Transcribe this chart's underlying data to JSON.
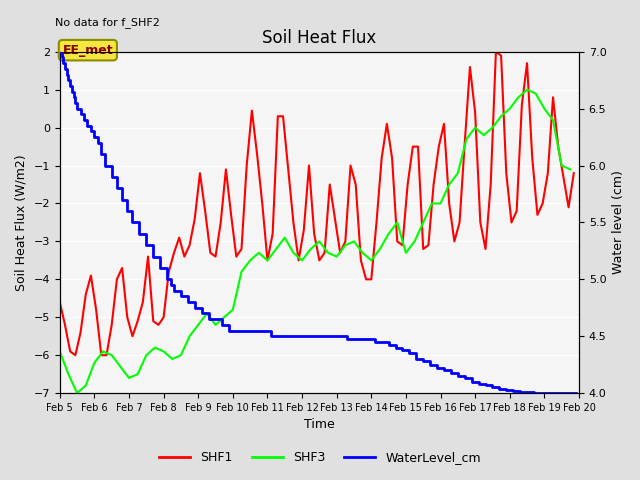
{
  "title": "Soil Heat Flux",
  "title_note": "No data for f_SHF2",
  "ylabel_left": "Soil Heat Flux (W/m2)",
  "ylabel_right": "Water level (cm)",
  "xlabel": "Time",
  "ylim_left": [
    -7.0,
    2.0
  ],
  "ylim_right": [
    4.0,
    7.0
  ],
  "xtick_labels": [
    "Feb 5",
    "Feb 6",
    "Feb 7",
    "Feb 8",
    "Feb 9",
    "Feb 10",
    "Feb 11",
    "Feb 12",
    "Feb 13",
    "Feb 14",
    "Feb 15",
    "Feb 16",
    "Feb 17",
    "Feb 18",
    "Feb 19",
    "Feb 20"
  ],
  "annotation_text": "EE_met",
  "background_color": "#e0e0e0",
  "plot_bg_color": "#f5f5f5",
  "shf1_color": "red",
  "shf3_color": "lime",
  "water_color": "blue",
  "grid_color": "#ffffff",
  "tick_fontsize": 8,
  "label_fontsize": 9,
  "title_fontsize": 12,
  "line_width": 1.5,
  "shf1_x": [
    5.0,
    5.15,
    5.3,
    5.45,
    5.6,
    5.75,
    5.9,
    6.05,
    6.2,
    6.35,
    6.5,
    6.65,
    6.8,
    6.95,
    7.1,
    7.25,
    7.4,
    7.55,
    7.7,
    7.85,
    8.0,
    8.15,
    8.3,
    8.45,
    8.6,
    8.75,
    8.9,
    9.05,
    9.2,
    9.35,
    9.5,
    9.65,
    9.8,
    9.95,
    10.1,
    10.25,
    10.4,
    10.55,
    10.7,
    10.85,
    11.0,
    11.15,
    11.3,
    11.45,
    11.6,
    11.75,
    11.9,
    12.05,
    12.2,
    12.35,
    12.5,
    12.65,
    12.8,
    12.95,
    13.1,
    13.25,
    13.4,
    13.55,
    13.7,
    13.85,
    14.0,
    14.15,
    14.3,
    14.45,
    14.6,
    14.75,
    14.9,
    15.05,
    15.2,
    15.35,
    15.5,
    15.65,
    15.8,
    15.95,
    16.1,
    16.25,
    16.4,
    16.55,
    16.7,
    16.85,
    17.0,
    17.15,
    17.3,
    17.45,
    17.6,
    17.75,
    17.9,
    18.05,
    18.2,
    18.35,
    18.5,
    18.65,
    18.8,
    18.95,
    19.1,
    19.25,
    19.4,
    19.55,
    19.7,
    19.85
  ],
  "shf1_y": [
    -4.6,
    -5.2,
    -5.9,
    -6.0,
    -5.4,
    -4.4,
    -3.9,
    -4.8,
    -6.0,
    -6.0,
    -5.2,
    -4.0,
    -3.7,
    -5.0,
    -5.5,
    -5.1,
    -4.6,
    -3.4,
    -5.1,
    -5.2,
    -5.0,
    -3.8,
    -3.3,
    -2.9,
    -3.4,
    -3.1,
    -2.4,
    -1.2,
    -2.2,
    -3.3,
    -3.4,
    -2.5,
    -1.1,
    -2.3,
    -3.4,
    -3.2,
    -1.0,
    0.45,
    -0.7,
    -2.0,
    -3.5,
    -2.8,
    0.3,
    0.3,
    -1.1,
    -2.5,
    -3.5,
    -2.7,
    -1.0,
    -2.8,
    -3.5,
    -3.3,
    -1.5,
    -2.4,
    -3.3,
    -3.0,
    -1.0,
    -1.5,
    -3.5,
    -4.0,
    -4.0,
    -2.5,
    -0.8,
    0.1,
    -0.8,
    -3.0,
    -3.1,
    -1.5,
    -0.5,
    -0.5,
    -3.2,
    -3.1,
    -1.5,
    -0.5,
    0.1,
    -2.0,
    -3.0,
    -2.5,
    -0.4,
    1.6,
    0.4,
    -2.5,
    -3.2,
    -1.5,
    2.0,
    1.9,
    -1.2,
    -2.5,
    -2.2,
    0.6,
    1.7,
    -0.8,
    -2.3,
    -2.0,
    -1.2,
    0.8,
    -0.5,
    -1.3,
    -2.1,
    -1.2
  ],
  "shf3_x": [
    5.0,
    5.25,
    5.5,
    5.75,
    6.0,
    6.25,
    6.5,
    6.75,
    7.0,
    7.25,
    7.5,
    7.75,
    8.0,
    8.25,
    8.5,
    8.75,
    9.0,
    9.25,
    9.5,
    9.75,
    10.0,
    10.25,
    10.5,
    10.75,
    11.0,
    11.25,
    11.5,
    11.75,
    12.0,
    12.25,
    12.5,
    12.75,
    13.0,
    13.25,
    13.5,
    13.75,
    14.0,
    14.25,
    14.5,
    14.75,
    15.0,
    15.25,
    15.5,
    15.75,
    16.0,
    16.25,
    16.5,
    16.75,
    17.0,
    17.25,
    17.5,
    17.75,
    18.0,
    18.25,
    18.5,
    18.75,
    19.0,
    19.25,
    19.5,
    19.75
  ],
  "shf3_y": [
    -5.9,
    -6.5,
    -7.0,
    -6.8,
    -6.2,
    -5.9,
    -6.0,
    -6.3,
    -6.6,
    -6.5,
    -6.0,
    -5.8,
    -5.9,
    -6.1,
    -6.0,
    -5.5,
    -5.2,
    -4.9,
    -5.2,
    -5.0,
    -4.8,
    -3.8,
    -3.5,
    -3.3,
    -3.5,
    -3.2,
    -2.9,
    -3.3,
    -3.5,
    -3.2,
    -3.0,
    -3.3,
    -3.4,
    -3.1,
    -3.0,
    -3.3,
    -3.5,
    -3.2,
    -2.8,
    -2.5,
    -3.3,
    -3.0,
    -2.5,
    -2.0,
    -2.0,
    -1.5,
    -1.2,
    -0.3,
    0.0,
    -0.2,
    0.0,
    0.3,
    0.5,
    0.8,
    1.0,
    0.9,
    0.5,
    0.2,
    -1.0,
    -1.1
  ],
  "water_steps_x": [
    5.0,
    5.05,
    5.1,
    5.15,
    5.2,
    5.25,
    5.3,
    5.35,
    5.4,
    5.45,
    5.5,
    5.6,
    5.7,
    5.8,
    5.9,
    6.0,
    6.1,
    6.2,
    6.3,
    6.5,
    6.65,
    6.8,
    6.95,
    7.1,
    7.3,
    7.5,
    7.7,
    7.9,
    8.1,
    8.2,
    8.3,
    8.5,
    8.7,
    8.9,
    9.1,
    9.3,
    9.5,
    9.7,
    9.9,
    10.1,
    10.3,
    10.5,
    10.7,
    10.9,
    11.1,
    11.3,
    11.5,
    11.7,
    11.9,
    12.1,
    12.3,
    12.5,
    12.7,
    12.9,
    13.1,
    13.3,
    13.5,
    13.7,
    13.9,
    14.1,
    14.3,
    14.5,
    14.7,
    14.9,
    15.1,
    15.3,
    15.5,
    15.7,
    15.9,
    16.1,
    16.3,
    16.5,
    16.7,
    16.9,
    17.1,
    17.3,
    17.5,
    17.7,
    17.9,
    18.0,
    18.1,
    18.2,
    18.3,
    18.4,
    18.5,
    18.6,
    18.7,
    18.8,
    18.9,
    19.0,
    19.1,
    19.2,
    19.5,
    19.9
  ],
  "water_steps_y": [
    7.0,
    6.95,
    6.9,
    6.85,
    6.8,
    6.75,
    6.7,
    6.65,
    6.6,
    6.55,
    6.5,
    6.45,
    6.4,
    6.35,
    6.3,
    6.25,
    6.2,
    6.1,
    6.0,
    5.9,
    5.8,
    5.7,
    5.6,
    5.5,
    5.4,
    5.3,
    5.2,
    5.1,
    5.0,
    4.95,
    4.9,
    4.85,
    4.8,
    4.75,
    4.7,
    4.65,
    4.65,
    4.6,
    4.55,
    4.55,
    4.55,
    4.55,
    4.55,
    4.55,
    4.5,
    4.5,
    4.5,
    4.5,
    4.5,
    4.5,
    4.5,
    4.5,
    4.5,
    4.5,
    4.5,
    4.48,
    4.48,
    4.48,
    4.48,
    4.45,
    4.45,
    4.42,
    4.4,
    4.38,
    4.35,
    4.3,
    4.28,
    4.25,
    4.22,
    4.2,
    4.18,
    4.15,
    4.13,
    4.1,
    4.08,
    4.07,
    4.05,
    4.04,
    4.03,
    4.03,
    4.02,
    4.02,
    4.01,
    4.01,
    4.01,
    4.01,
    4.0,
    4.0,
    4.0,
    4.0,
    4.0,
    4.0,
    4.0,
    4.0
  ]
}
